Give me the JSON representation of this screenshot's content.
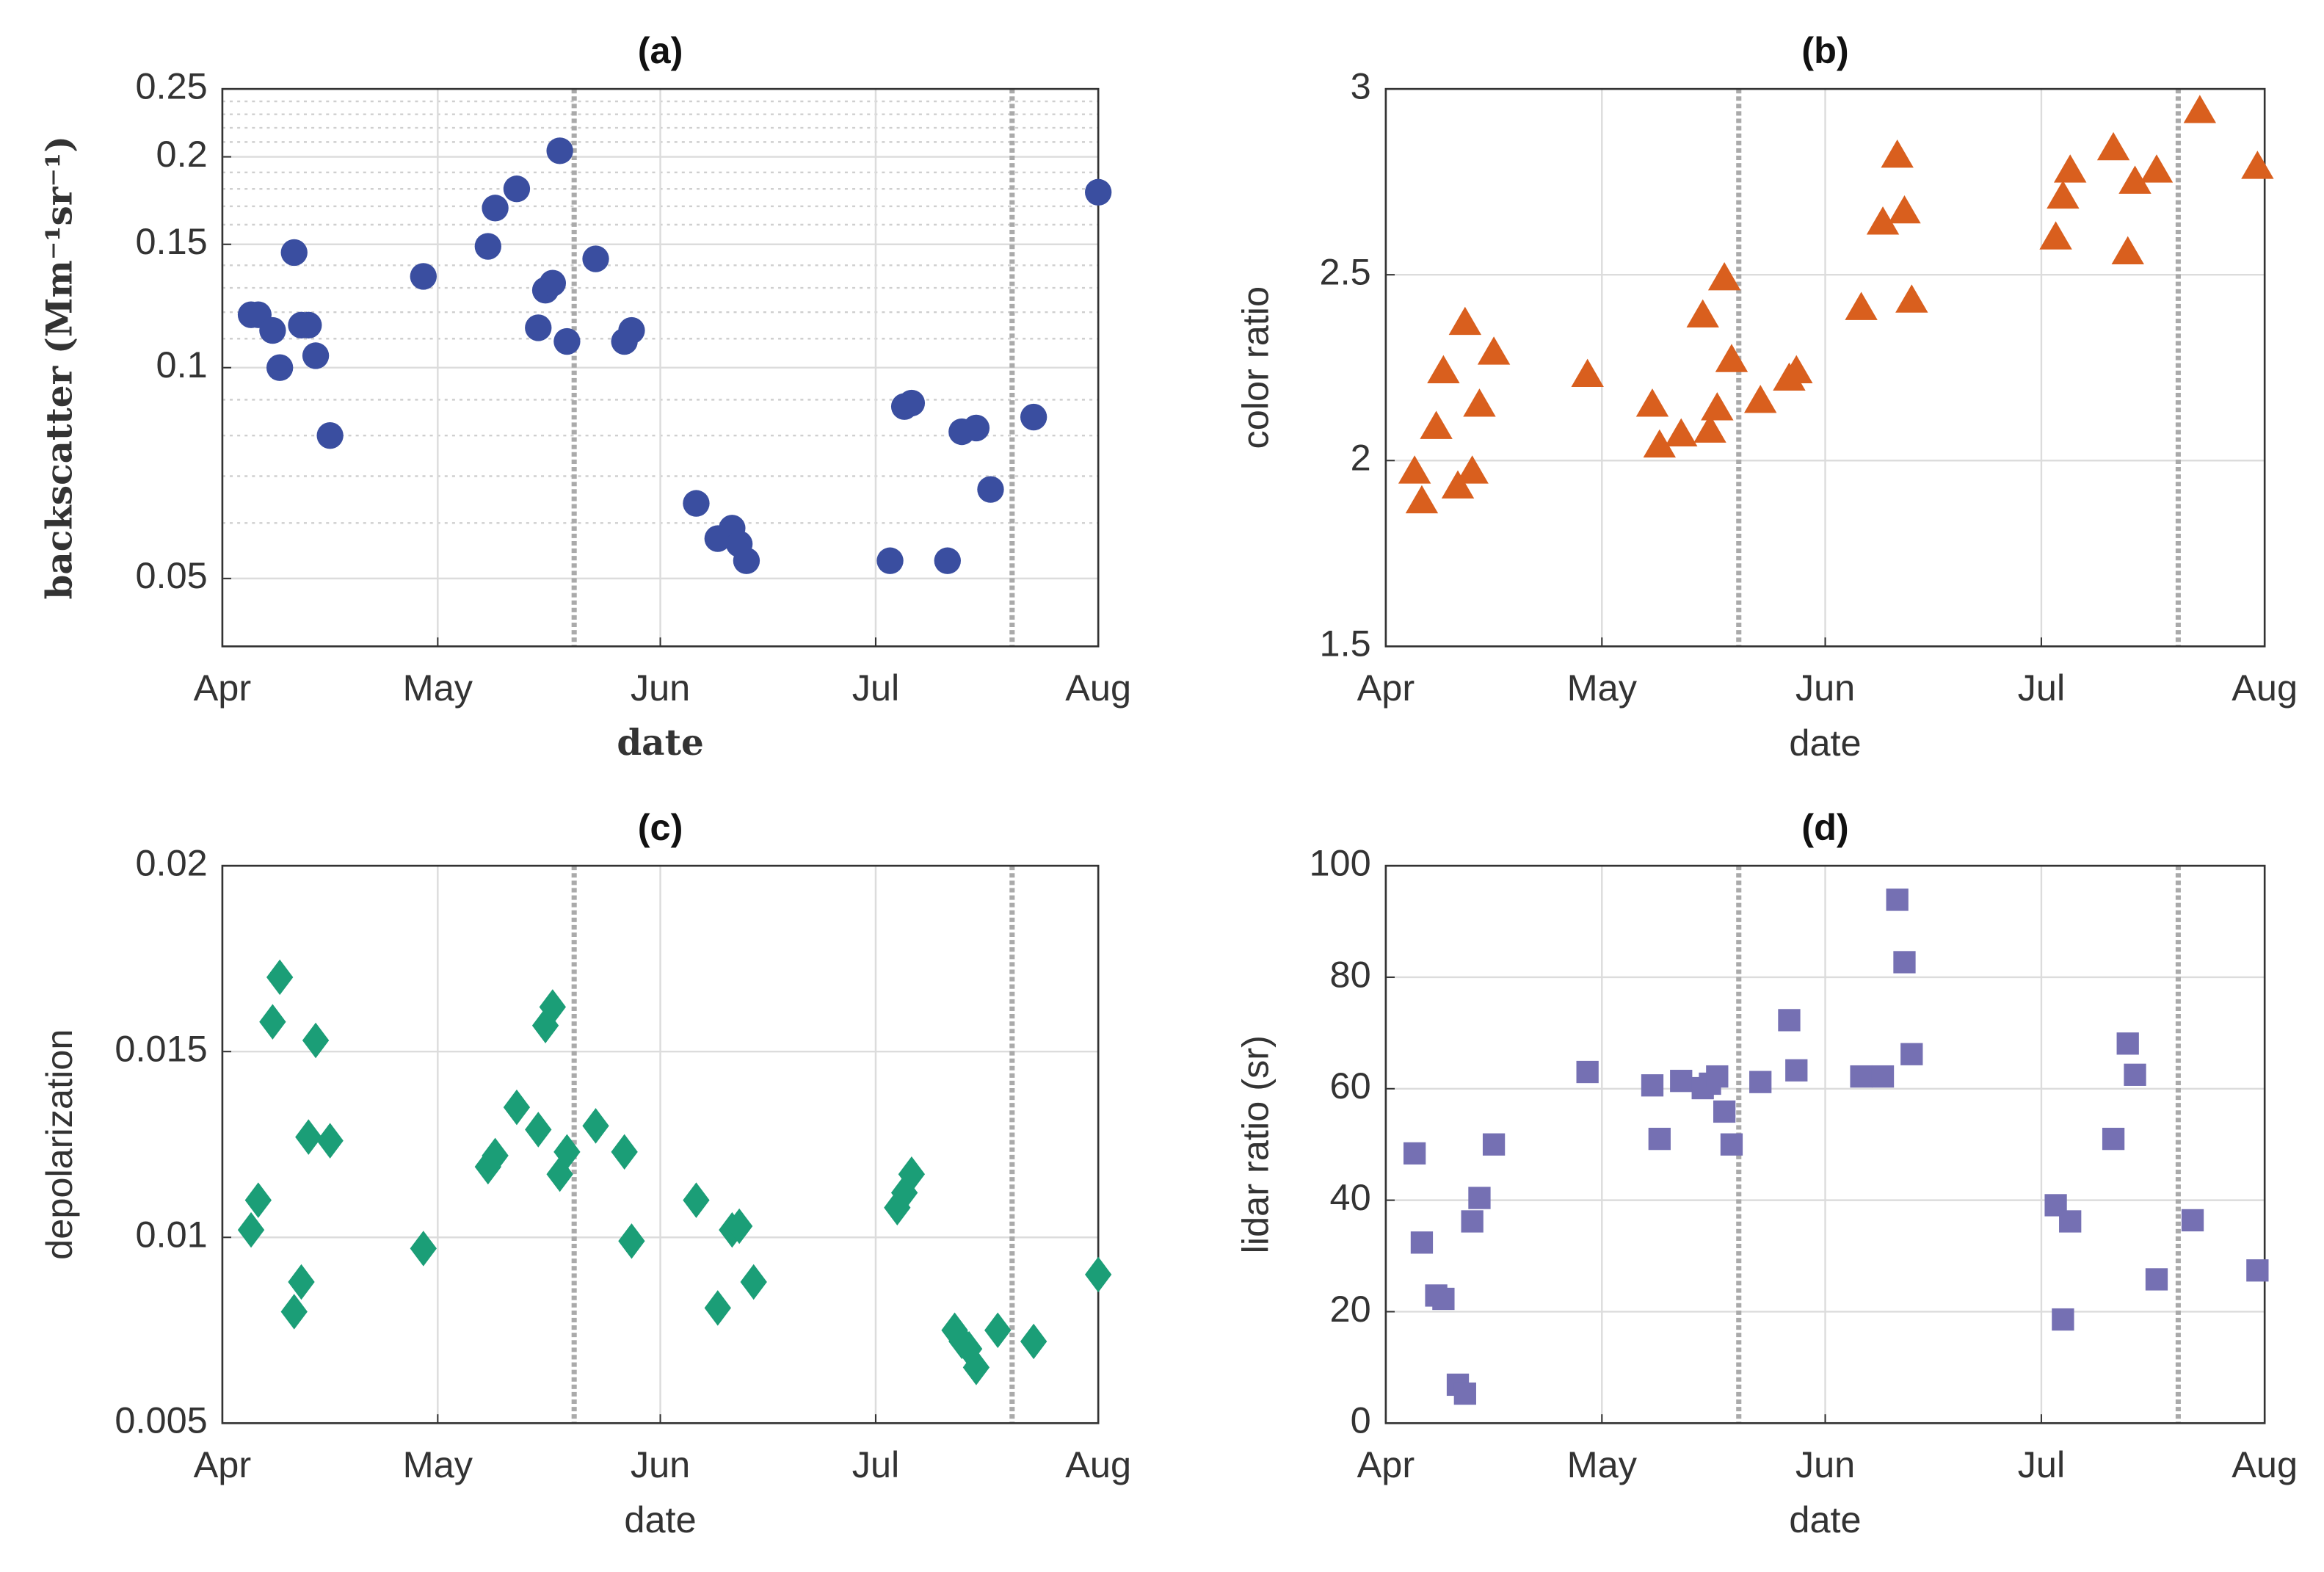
{
  "chart_data": [
    {
      "type": "scatter",
      "title": "(a)",
      "xlabel": "date",
      "ylabel": "backscatter (Mm⁻¹sr⁻¹)",
      "marker": "circle",
      "color": "#3a4ea0",
      "log_y": true,
      "grid": true,
      "xlim": [
        0,
        122
      ],
      "xticks": [
        {
          "value": 0,
          "label": "Apr"
        },
        {
          "value": 30,
          "label": "May"
        },
        {
          "value": 61,
          "label": "Jun"
        },
        {
          "value": 91,
          "label": "Jul"
        },
        {
          "value": 122,
          "label": "Aug"
        }
      ],
      "ylim": [
        0.04,
        0.25
      ],
      "yticks": [
        0.05,
        0.1,
        0.15,
        0.2,
        0.25
      ],
      "minor_yticks": [
        0.06,
        0.07,
        0.08,
        0.09,
        0.11,
        0.12,
        0.13,
        0.14,
        0.16,
        0.17,
        0.18,
        0.19,
        0.21,
        0.22,
        0.23,
        0.24
      ],
      "vlines": [
        49,
        110
      ],
      "x": [
        4,
        5,
        7,
        8,
        10,
        11,
        12,
        13,
        15,
        28,
        37,
        38,
        41,
        44,
        45,
        46,
        47,
        48,
        52,
        56,
        57,
        66,
        69,
        71,
        72,
        73,
        93,
        95,
        96,
        101,
        103,
        105,
        107,
        113,
        122
      ],
      "values": [
        0.119,
        0.119,
        0.113,
        0.1,
        0.146,
        0.115,
        0.115,
        0.104,
        0.08,
        0.135,
        0.149,
        0.169,
        0.18,
        0.114,
        0.129,
        0.132,
        0.204,
        0.109,
        0.143,
        0.109,
        0.113,
        0.064,
        0.057,
        0.059,
        0.056,
        0.053,
        0.053,
        0.088,
        0.089,
        0.053,
        0.081,
        0.082,
        0.067,
        0.085,
        0.178
      ]
    },
    {
      "type": "scatter",
      "title": "(b)",
      "xlabel": "date",
      "ylabel": "color ratio",
      "marker": "triangle",
      "color": "#d95f1e",
      "log_y": false,
      "grid": true,
      "xlim": [
        0,
        122
      ],
      "xticks": [
        {
          "value": 0,
          "label": "Apr"
        },
        {
          "value": 30,
          "label": "May"
        },
        {
          "value": 61,
          "label": "Jun"
        },
        {
          "value": 91,
          "label": "Jul"
        },
        {
          "value": 122,
          "label": "Aug"
        }
      ],
      "ylim": [
        1.5,
        3
      ],
      "yticks": [
        1.5,
        2,
        2.5,
        3
      ],
      "vlines": [
        49,
        110
      ],
      "x": [
        4,
        5,
        7,
        8,
        10,
        11,
        12,
        13,
        15,
        28,
        37,
        38,
        41,
        44,
        45,
        46,
        47,
        48,
        52,
        56,
        57,
        66,
        69,
        71,
        72,
        73,
        93,
        94,
        95,
        101,
        103,
        104,
        107,
        113,
        121
      ],
      "values": [
        1.97,
        1.89,
        2.09,
        2.24,
        1.93,
        2.37,
        1.97,
        2.15,
        2.29,
        2.23,
        2.15,
        2.04,
        2.07,
        2.39,
        2.08,
        2.14,
        2.49,
        2.27,
        2.16,
        2.22,
        2.24,
        2.41,
        2.64,
        2.82,
        2.67,
        2.43,
        2.6,
        2.71,
        2.78,
        2.84,
        2.56,
        2.75,
        2.78,
        2.94,
        2.79
      ]
    },
    {
      "type": "scatter",
      "title": "(c)",
      "xlabel": "date",
      "ylabel": "depolarization",
      "marker": "diamond",
      "color": "#1b9e77",
      "log_y": false,
      "grid": true,
      "xlim": [
        0,
        122
      ],
      "xticks": [
        {
          "value": 0,
          "label": "Apr"
        },
        {
          "value": 30,
          "label": "May"
        },
        {
          "value": 61,
          "label": "Jun"
        },
        {
          "value": 91,
          "label": "Jul"
        },
        {
          "value": 122,
          "label": "Aug"
        }
      ],
      "ylim": [
        0.005,
        0.02
      ],
      "yticks": [
        0.005,
        0.01,
        0.015,
        0.02
      ],
      "vlines": [
        49,
        110
      ],
      "x": [
        4,
        5,
        7,
        8,
        10,
        11,
        12,
        13,
        15,
        28,
        37,
        38,
        41,
        44,
        45,
        46,
        47,
        48,
        52,
        56,
        57,
        66,
        69,
        71,
        72,
        74,
        94,
        95,
        96,
        102,
        103,
        104,
        105,
        108,
        113,
        122
      ],
      "values": [
        0.0102,
        0.011,
        0.0158,
        0.017,
        0.008,
        0.0088,
        0.0127,
        0.0153,
        0.0126,
        0.0097,
        0.0119,
        0.0122,
        0.0135,
        0.0129,
        0.0157,
        0.0162,
        0.0117,
        0.0123,
        0.013,
        0.0123,
        0.0099,
        0.011,
        0.0081,
        0.0102,
        0.0103,
        0.0088,
        0.0108,
        0.0112,
        0.0117,
        0.0075,
        0.0072,
        0.007,
        0.0065,
        0.0075,
        0.0072,
        0.009
      ]
    },
    {
      "type": "scatter",
      "title": "(d)",
      "xlabel": "date",
      "ylabel": "lidar ratio (sr)",
      "marker": "square",
      "color": "#7570b3",
      "log_y": false,
      "grid": true,
      "xlim": [
        0,
        122
      ],
      "xticks": [
        {
          "value": 0,
          "label": "Apr"
        },
        {
          "value": 30,
          "label": "May"
        },
        {
          "value": 61,
          "label": "Jun"
        },
        {
          "value": 91,
          "label": "Jul"
        },
        {
          "value": 122,
          "label": "Aug"
        }
      ],
      "ylim": [
        0,
        100
      ],
      "yticks": [
        0,
        20,
        40,
        60,
        80,
        100
      ],
      "vlines": [
        49,
        110
      ],
      "x": [
        4,
        5,
        7,
        8,
        10,
        11,
        12,
        13,
        15,
        28,
        37,
        38,
        41,
        44,
        45,
        46,
        47,
        48,
        52,
        56,
        57,
        66,
        69,
        71,
        72,
        73,
        93,
        94,
        95,
        101,
        103,
        104,
        107,
        112,
        121
      ],
      "values": [
        48.4,
        32.4,
        22.9,
        22.3,
        6.9,
        5.3,
        36.2,
        40.4,
        50,
        63,
        60.6,
        51,
        61.4,
        60.1,
        60.9,
        62.2,
        55.9,
        50,
        61.2,
        72.3,
        63.3,
        62.2,
        62.2,
        93.9,
        82.7,
        66.2,
        39.1,
        18.6,
        36.2,
        51,
        68.1,
        62.5,
        25.8,
        36.4,
        27.4
      ]
    }
  ]
}
